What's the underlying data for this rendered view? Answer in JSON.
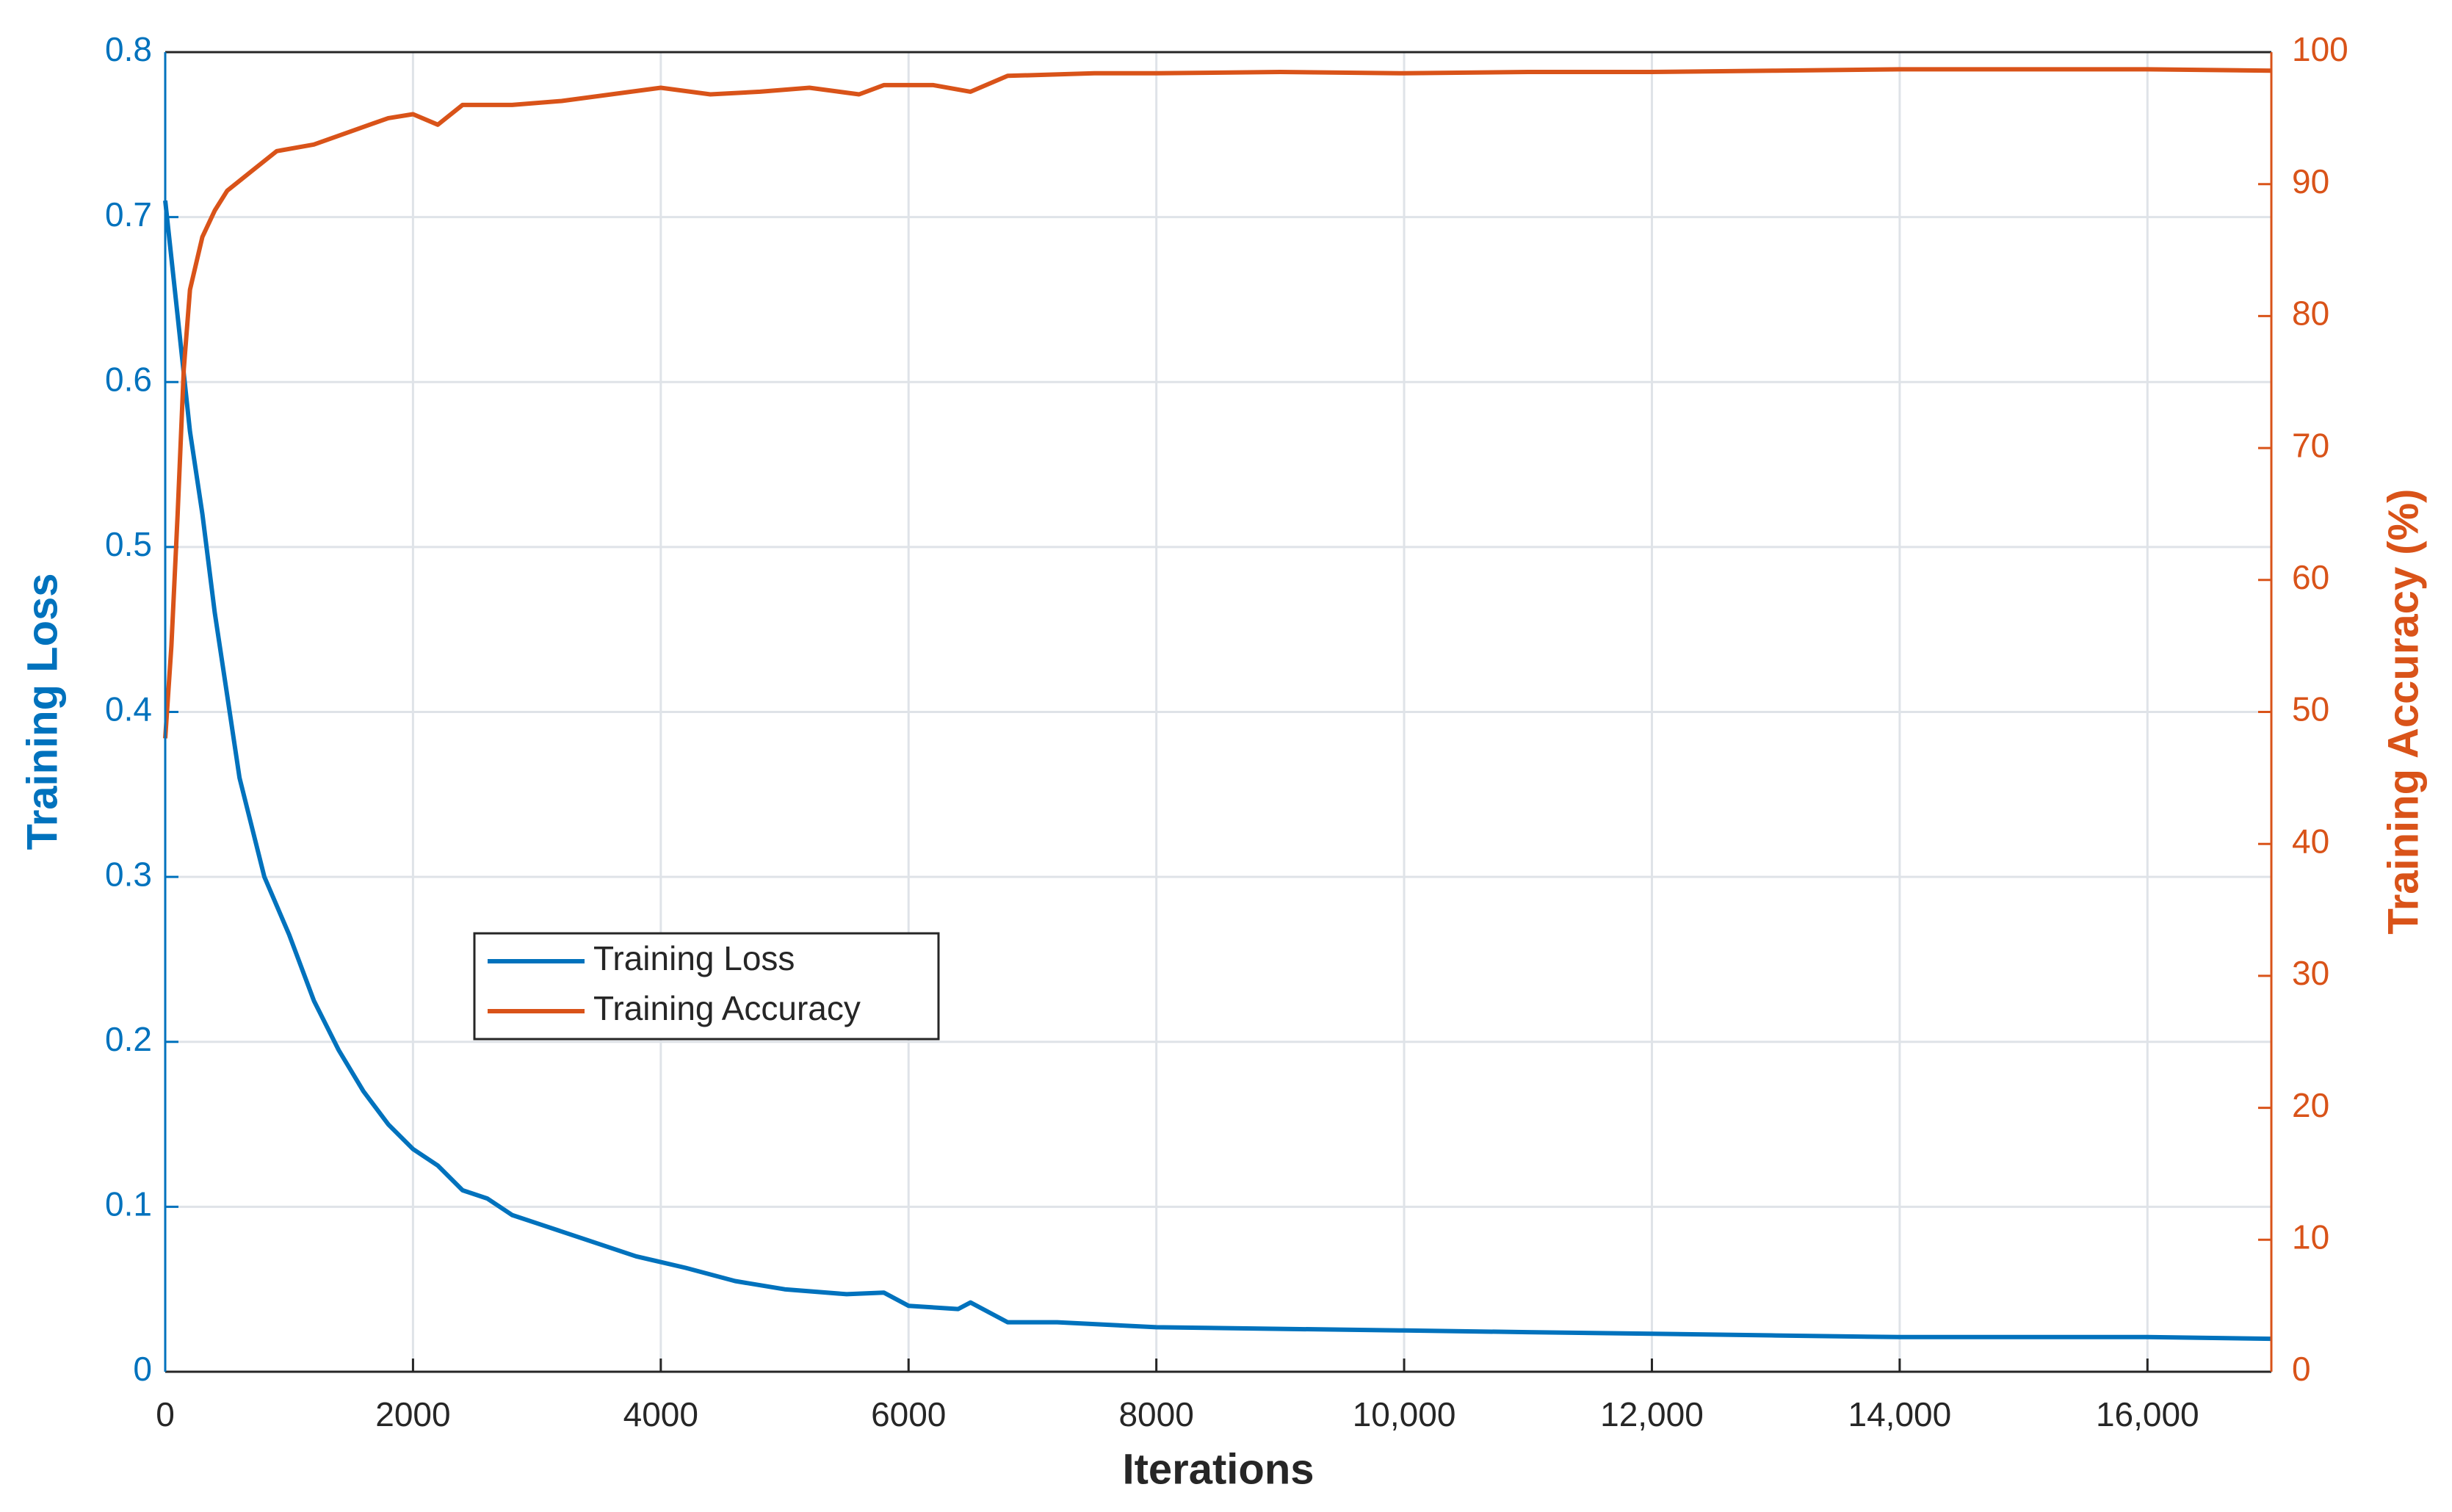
{
  "chart_data": {
    "type": "line",
    "x_label": "Iterations",
    "y_label": "Training Loss",
    "y2_label": "Training Accuracy (%)",
    "xlim": [
      0,
      17000
    ],
    "xticks": [
      0,
      2000,
      4000,
      6000,
      8000,
      {
        "value": 10000,
        "label": "10,000"
      },
      {
        "value": 12000,
        "label": "12,000"
      },
      {
        "value": 14000,
        "label": "14,000"
      },
      {
        "value": 16000,
        "label": "16,000"
      }
    ],
    "ylim": [
      0,
      0.8
    ],
    "yticks": [
      0,
      0.1,
      0.2,
      0.3,
      0.4,
      0.5,
      0.6,
      0.7,
      0.8
    ],
    "y2lim": [
      0,
      100
    ],
    "y2ticks": [
      0,
      10,
      20,
      30,
      40,
      50,
      60,
      70,
      80,
      90,
      100
    ],
    "grid": true,
    "series": [
      {
        "name": "Training Loss",
        "color": "#0072BD",
        "axis": "y",
        "x": [
          0,
          100,
          200,
          300,
          400,
          500,
          600,
          700,
          800,
          1000,
          1200,
          1400,
          1600,
          1800,
          2000,
          2200,
          2400,
          2600,
          2800,
          3000,
          3400,
          3800,
          4200,
          4600,
          5000,
          5500,
          5800,
          6000,
          6400,
          6500,
          6800,
          7200,
          8000,
          9000,
          10000,
          11000,
          12000,
          13000,
          14000,
          15000,
          16000,
          17000
        ],
        "values": [
          0.71,
          0.64,
          0.57,
          0.52,
          0.46,
          0.41,
          0.36,
          0.33,
          0.3,
          0.265,
          0.225,
          0.195,
          0.17,
          0.15,
          0.135,
          0.125,
          0.11,
          0.105,
          0.095,
          0.09,
          0.08,
          0.07,
          0.063,
          0.055,
          0.05,
          0.047,
          0.048,
          0.04,
          0.038,
          0.042,
          0.03,
          0.03,
          0.027,
          0.026,
          0.025,
          0.024,
          0.023,
          0.022,
          0.021,
          0.021,
          0.021,
          0.02
        ]
      },
      {
        "name": "Training Accuracy",
        "color": "#D95319",
        "axis": "y2",
        "x": [
          0,
          50,
          100,
          150,
          200,
          300,
          400,
          500,
          700,
          900,
          1200,
          1500,
          1800,
          2000,
          2200,
          2400,
          2800,
          3200,
          3600,
          4000,
          4400,
          4800,
          5200,
          5600,
          5800,
          6200,
          6500,
          6800,
          7500,
          8000,
          9000,
          10000,
          11000,
          12000,
          13000,
          14000,
          15000,
          16000,
          17000
        ],
        "values": [
          48,
          55,
          65,
          76,
          82,
          86,
          88,
          89.5,
          91,
          92.5,
          93,
          94,
          95,
          95.3,
          94.5,
          96,
          96,
          96.3,
          96.8,
          97.3,
          96.8,
          97,
          97.3,
          96.8,
          97.5,
          97.5,
          97,
          98.2,
          98.4,
          98.4,
          98.5,
          98.4,
          98.5,
          98.5,
          98.6,
          98.7,
          98.7,
          98.7,
          98.6
        ]
      }
    ]
  }
}
